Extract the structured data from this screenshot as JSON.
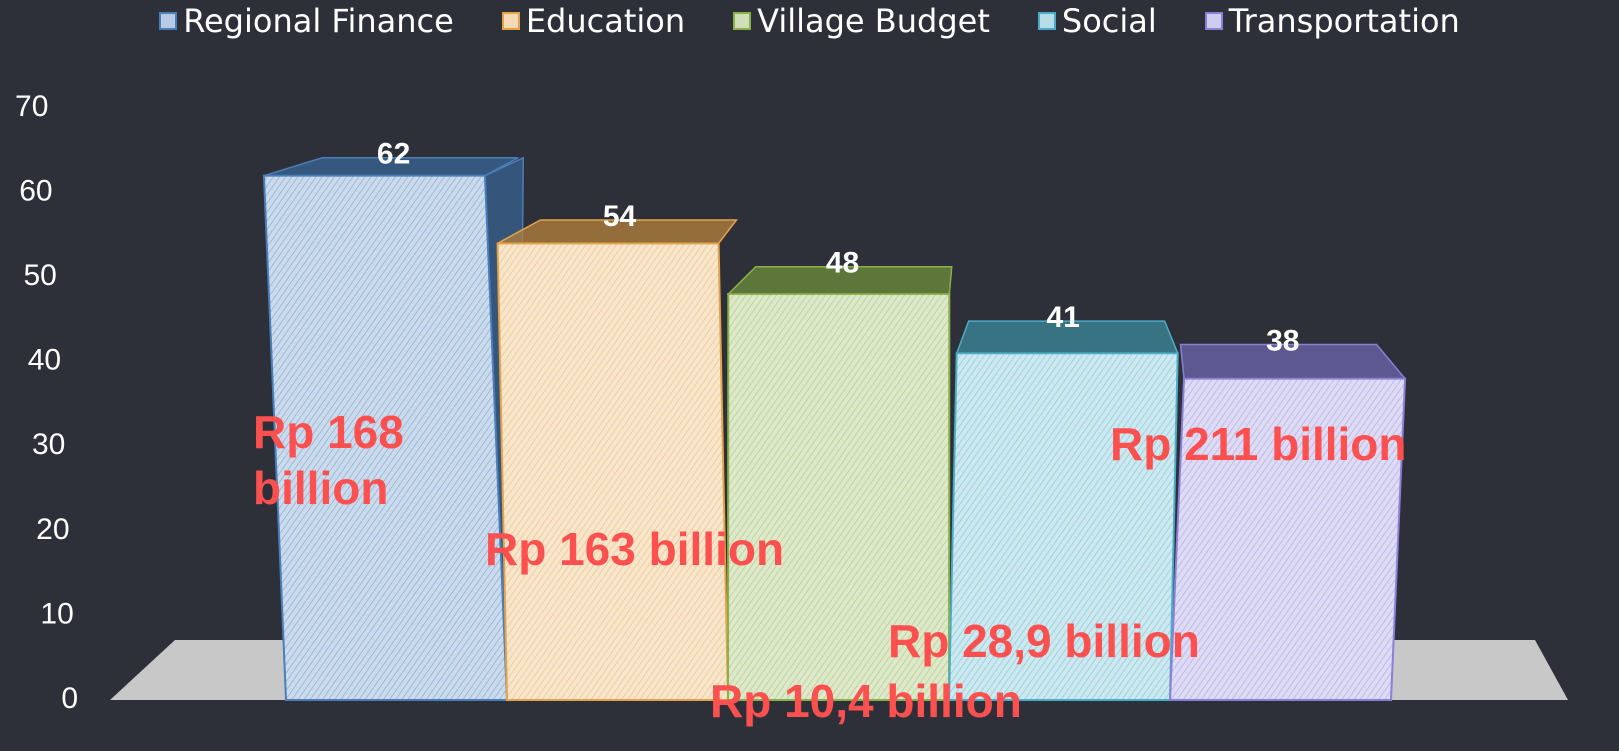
{
  "chart_data": {
    "type": "bar3d",
    "categories": [
      null
    ],
    "series": [
      {
        "name": "Regional Finance",
        "color": "#4a7ebb",
        "values": [
          62
        ]
      },
      {
        "name": "Education",
        "color": "#e3a34a",
        "values": [
          54
        ]
      },
      {
        "name": "Village Budget",
        "color": "#8ab04a",
        "values": [
          48
        ]
      },
      {
        "name": "Social",
        "color": "#4bacc6",
        "values": [
          41
        ]
      },
      {
        "name": "Transportation",
        "color": "#8a80d8",
        "values": [
          38
        ]
      }
    ],
    "ylim": [
      0,
      70
    ],
    "yticks": [
      0,
      10,
      20,
      30,
      40,
      50,
      60,
      70
    ],
    "legend": "top",
    "annotations": [
      "Rp 168 billion",
      "Rp 163 billion",
      "Rp 10,4 billion",
      "Rp 28,9 billion",
      "Rp 211 billion"
    ]
  }
}
